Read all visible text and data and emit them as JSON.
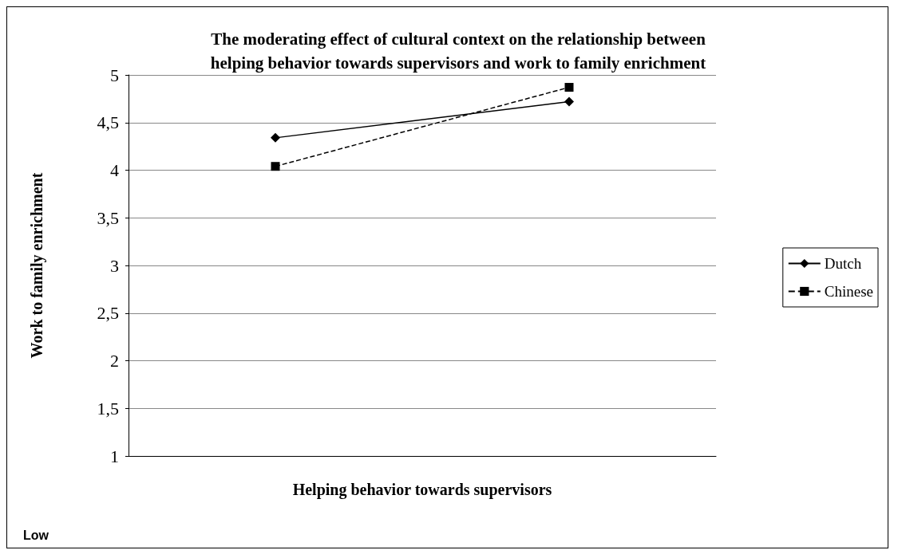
{
  "chart_data": {
    "type": "line",
    "title": "The moderating effect of cultural context on the relationship between\nhelping behavior towards supervisors and work to family enrichment",
    "xlabel": "Helping behavior towards supervisors",
    "ylabel": "Work to family enrichment",
    "annotations": [
      "Low"
    ],
    "categories": [
      null,
      null
    ],
    "series": [
      {
        "name": "Dutch",
        "color": "#000000",
        "values": [
          4.34,
          4.72
        ],
        "marker": "diamond",
        "line_style": "solid"
      },
      {
        "name": "Chinese",
        "color": "#000000",
        "values": [
          4.04,
          4.87
        ],
        "marker": "square",
        "line_style": "dashed"
      }
    ],
    "ylim": [
      1,
      5
    ],
    "yticks": [
      1,
      {
        "value": 1.5,
        "label": "1,5"
      },
      2,
      {
        "value": 2.5,
        "label": "2,5"
      },
      3,
      {
        "value": 3.5,
        "label": "3,5"
      },
      4,
      {
        "value": 4.5,
        "label": "4,5"
      },
      5
    ],
    "grid": "y",
    "legend": "right"
  }
}
